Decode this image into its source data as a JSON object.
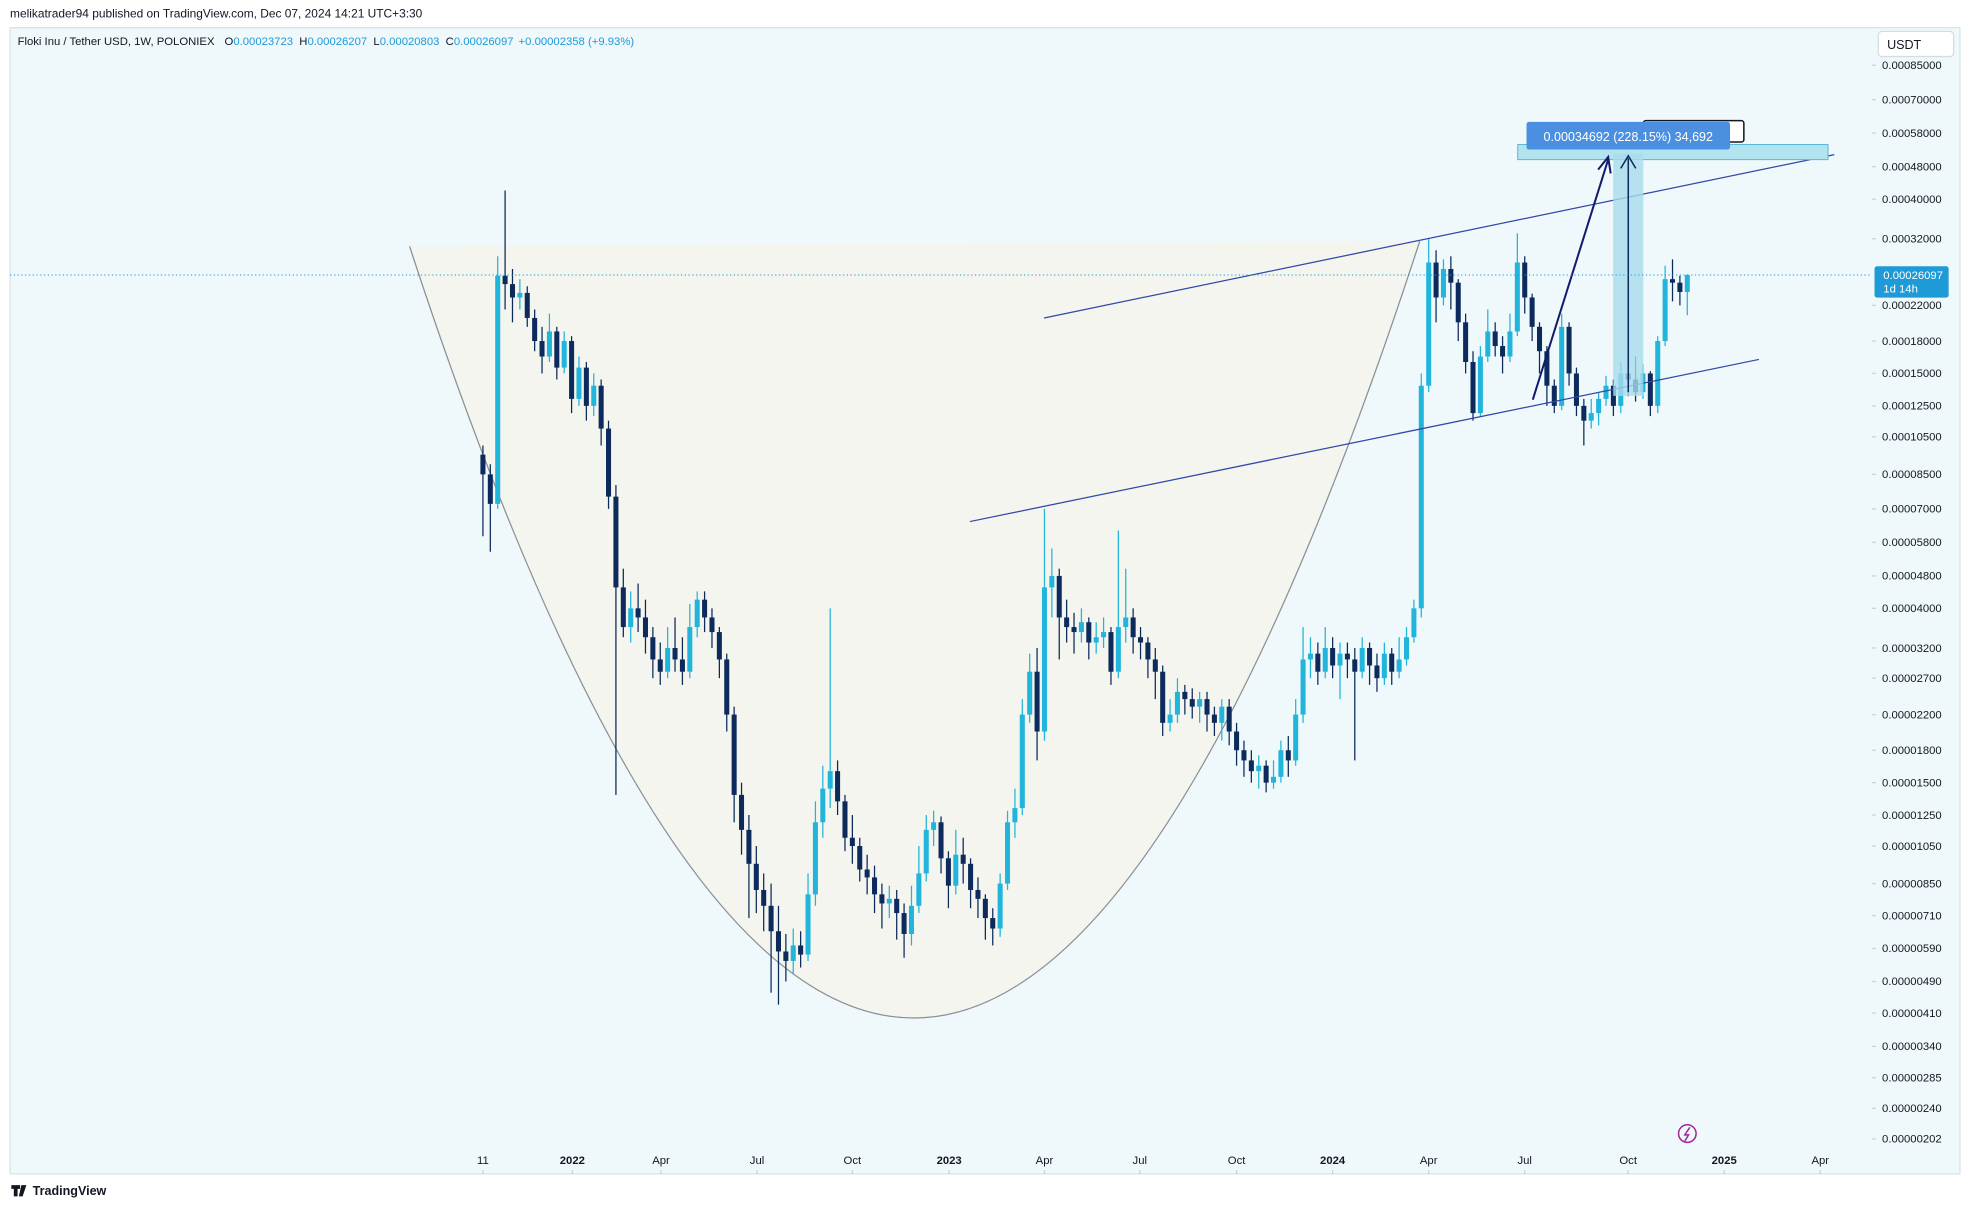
{
  "header": {
    "publisher": "melikatrader94 published on TradingView.com, Dec 07, 2024 14:21 UTC+3:30"
  },
  "currency": "USDT",
  "countdown": "1d 14h",
  "measure_label": "0.00034692 (228.15%) 34,692",
  "brand": "TradingView",
  "chart_data": {
    "type": "candlestick",
    "title": "Floki Inu / Tether USD, 1W, POLONIEX",
    "legend_keys": [
      "O",
      "H",
      "L",
      "C"
    ],
    "change": "+0.00002358 (+9.93%)",
    "log_scale": true,
    "up_color": "#22b5dc",
    "down_color": "#0c2a5c",
    "ylim": [
      1.66e-06,
      0.00105
    ],
    "yticks": [
      {
        "value": 0.00085,
        "label": "0.00085000"
      },
      {
        "value": 0.0007,
        "label": "0.00070000"
      },
      {
        "value": 0.00058,
        "label": "0.00058000"
      },
      {
        "value": 0.00048,
        "label": "0.00048000"
      },
      {
        "value": 0.0004,
        "label": "0.00040000"
      },
      {
        "value": 0.00032,
        "label": "0.00032000"
      },
      {
        "value": 0.00022,
        "label": "0.00022000"
      },
      {
        "value": 0.00018,
        "label": "0.00018000"
      },
      {
        "value": 0.00015,
        "label": "0.00015000"
      },
      {
        "value": 0.000125,
        "label": "0.00012500"
      },
      {
        "value": 0.000105,
        "label": "0.00010500"
      },
      {
        "value": 8.5e-05,
        "label": "0.00008500"
      },
      {
        "value": 7e-05,
        "label": "0.00007000"
      },
      {
        "value": 5.8e-05,
        "label": "0.00005800"
      },
      {
        "value": 4.8e-05,
        "label": "0.00004800"
      },
      {
        "value": 4e-05,
        "label": "0.00004000"
      },
      {
        "value": 3.2e-05,
        "label": "0.00003200"
      },
      {
        "value": 2.7e-05,
        "label": "0.00002700"
      },
      {
        "value": 2.2e-05,
        "label": "0.00002200"
      },
      {
        "value": 1.8e-05,
        "label": "0.00001800"
      },
      {
        "value": 1.5e-05,
        "label": "0.00001500"
      },
      {
        "value": 1.25e-05,
        "label": "0.00001250"
      },
      {
        "value": 1.05e-05,
        "label": "0.00001050"
      },
      {
        "value": 8.5e-06,
        "label": "0.00000850"
      },
      {
        "value": 7.1e-06,
        "label": "0.00000710"
      },
      {
        "value": 5.9e-06,
        "label": "0.00000590"
      },
      {
        "value": 4.9e-06,
        "label": "0.00000490"
      },
      {
        "value": 4.1e-06,
        "label": "0.00000410"
      },
      {
        "value": 3.4e-06,
        "label": "0.00000340"
      },
      {
        "value": 2.85e-06,
        "label": "0.00000285"
      },
      {
        "value": 2.4e-06,
        "label": "0.00000240"
      },
      {
        "value": 2.02e-06,
        "label": "0.00000202"
      }
    ],
    "xlim": [
      -64,
      188
    ],
    "xticks": [
      {
        "value": 0,
        "label": "11"
      },
      {
        "value": 12.1,
        "label": "2022"
      },
      {
        "value": 24.1,
        "label": "Apr"
      },
      {
        "value": 37.1,
        "label": "Jul"
      },
      {
        "value": 50,
        "label": "Oct"
      },
      {
        "value": 63.1,
        "label": "2023"
      },
      {
        "value": 76,
        "label": "Apr"
      },
      {
        "value": 88.9,
        "label": "Jul"
      },
      {
        "value": 102,
        "label": "Oct"
      },
      {
        "value": 115,
        "label": "2024"
      },
      {
        "value": 128,
        "label": "Apr"
      },
      {
        "value": 141,
        "label": "Jul"
      },
      {
        "value": 155,
        "label": "Oct"
      },
      {
        "value": 168,
        "label": "2025"
      },
      {
        "value": 181,
        "label": "Apr"
      }
    ],
    "open": [
      9.5e-05,
      8.5e-05,
      7.2e-05,
      0.00026,
      0.000248,
      0.00023,
      0.000236,
      0.000205,
      0.00018,
      0.000165,
      0.00019,
      0.000155,
      0.00018,
      0.00013,
      0.000155,
      0.000125,
      0.00014,
      0.00011,
      7.5e-05,
      4.5e-05,
      3.6e-05,
      4e-05,
      3.8e-05,
      3.4e-05,
      3e-05,
      2.8e-05,
      3.2e-05,
      3e-05,
      2.8e-05,
      3.6e-05,
      4.2e-05,
      3.8e-05,
      3.5e-05,
      3e-05,
      2.2e-05,
      1.4e-05,
      1.15e-05,
      9.5e-06,
      8.2e-06,
      7.5e-06,
      6.5e-06,
      5.8e-06,
      5.5e-06,
      6e-06,
      5.7e-06,
      8e-06,
      1.2e-05,
      1.45e-05,
      1.6e-05,
      1.35e-05,
      1.1e-05,
      1.05e-05,
      9.2e-06,
      8.8e-06,
      8e-06,
      7.6e-06,
      7.8e-06,
      7.2e-06,
      6.4e-06,
      7.5e-06,
      9e-06,
      1.15e-05,
      1.2e-05,
      9.8e-06,
      8.4e-06,
      1e-05,
      9.5e-06,
      8.2e-06,
      7.8e-06,
      7e-06,
      6.6e-06,
      8.5e-06,
      1.2e-05,
      1.3e-05,
      2.2e-05,
      2.8e-05,
      2e-05,
      4.5e-05,
      4.8e-05,
      3.8e-05,
      3.6e-05,
      3.5e-05,
      3.7e-05,
      3.3e-05,
      3.4e-05,
      3.5e-05,
      2.8e-05,
      3.6e-05,
      3.8e-05,
      3.4e-05,
      3.3e-05,
      3e-05,
      2.8e-05,
      2.1e-05,
      2.2e-05,
      2.5e-05,
      2.4e-05,
      2.3e-05,
      2.4e-05,
      2.2e-05,
      2.1e-05,
      2.3e-05,
      2e-05,
      1.8e-05,
      1.7e-05,
      1.6e-05,
      1.65e-05,
      1.5e-05,
      1.55e-05,
      1.8e-05,
      1.7e-05,
      2.2e-05,
      3e-05,
      3.1e-05,
      2.8e-05,
      3.2e-05,
      2.9e-05,
      3.1e-05,
      3e-05,
      2.8e-05,
      3.2e-05,
      2.9e-05,
      2.7e-05,
      3.1e-05,
      2.8e-05,
      3e-05,
      3.4e-05,
      4e-05,
      0.00014,
      0.00028,
      0.00023,
      0.00027,
      0.00025,
      0.0002,
      0.00016,
      0.00012,
      0.000165,
      0.00019,
      0.000175,
      0.000165,
      0.00019,
      0.00028,
      0.00023,
      0.000195,
      0.00017,
      0.00014,
      0.000125,
      0.000195,
      0.00015,
      0.000125,
      0.000115,
      0.00012,
      0.00013,
      0.00014,
      0.000125,
      0.00015,
      0.000145,
      0.000135,
      0.00015,
      0.000125,
      0.00018,
      0.000255,
      0.00025,
      0.00023723
    ],
    "high": [
      0.0001,
      9e-05,
      0.00029,
      0.00042,
      0.00027,
      0.000255,
      0.000245,
      0.000215,
      0.000195,
      0.00021,
      0.000195,
      0.00019,
      0.000185,
      0.000165,
      0.00016,
      0.00015,
      0.000145,
      0.000115,
      8e-05,
      5e-05,
      4.4e-05,
      4.6e-05,
      4.2e-05,
      3.6e-05,
      3.3e-05,
      3.6e-05,
      3.8e-05,
      3.4e-05,
      4.1e-05,
      4.4e-05,
      4.4e-05,
      4e-05,
      3.6e-05,
      3.1e-05,
      2.3e-05,
      1.5e-05,
      1.25e-05,
      1.05e-05,
      9e-06,
      8.5e-06,
      7.5e-06,
      6.4e-06,
      6.6e-06,
      6.5e-06,
      9e-06,
      1.35e-05,
      1.65e-05,
      4e-05,
      1.7e-05,
      1.4e-05,
      1.25e-05,
      1.1e-05,
      1e-05,
      9.4e-06,
      8.5e-06,
      8.4e-06,
      8.2e-06,
      7.6e-06,
      8.4e-06,
      1.05e-05,
      1.25e-05,
      1.28e-05,
      1.24e-05,
      1.02e-05,
      1.15e-05,
      1.1e-05,
      9.8e-06,
      8.8e-06,
      8e-06,
      7.4e-06,
      9e-06,
      1.28e-05,
      1.45e-05,
      2.4e-05,
      3.1e-05,
      3.2e-05,
      7e-05,
      5.6e-05,
      5e-05,
      4.2e-05,
      3.9e-05,
      4e-05,
      3.8e-05,
      3.7e-05,
      3.8e-05,
      3.6e-05,
      6.2e-05,
      5e-05,
      4e-05,
      3.6e-05,
      3.4e-05,
      3.2e-05,
      2.9e-05,
      2.4e-05,
      2.7e-05,
      2.6e-05,
      2.55e-05,
      2.5e-05,
      2.5e-05,
      2.3e-05,
      2.4e-05,
      2.4e-05,
      2.1e-05,
      1.9e-05,
      1.8e-05,
      1.75e-05,
      1.7e-05,
      1.7e-05,
      1.9e-05,
      1.95e-05,
      2.4e-05,
      3.6e-05,
      3.4e-05,
      3.3e-05,
      3.6e-05,
      3.4e-05,
      3.3e-05,
      3.3e-05,
      3.2e-05,
      3.4e-05,
      3.3e-05,
      3.1e-05,
      3.3e-05,
      3.2e-05,
      3.4e-05,
      3.6e-05,
      4.2e-05,
      0.00015,
      0.00032,
      0.0003,
      0.000285,
      0.00029,
      0.000255,
      0.00021,
      0.00017,
      0.000175,
      0.000215,
      0.0002,
      0.000185,
      0.00021,
      0.00033,
      0.00029,
      0.000235,
      0.0002,
      0.000175,
      0.000145,
      0.00021,
      0.0002,
      0.000155,
      0.00013,
      0.00013,
      0.000135,
      0.000148,
      0.000145,
      0.00016,
      0.000155,
      0.000165,
      0.000158,
      0.000152,
      0.000185,
      0.000275,
      0.000285,
      0.00026,
      0.00026207
    ],
    "low": [
      6e-05,
      5.5e-05,
      7e-05,
      0.000215,
      0.0002,
      0.000215,
      0.000195,
      0.00017,
      0.00015,
      0.00016,
      0.000145,
      0.00015,
      0.00012,
      0.000125,
      0.000115,
      0.000118,
      0.0001,
      7e-05,
      1.4e-05,
      3.4e-05,
      3.3e-05,
      3.5e-05,
      3.1e-05,
      2.7e-05,
      2.6e-05,
      2.7e-05,
      2.8e-05,
      2.6e-05,
      2.7e-05,
      3.4e-05,
      3.5e-05,
      3.2e-05,
      2.7e-05,
      2e-05,
      1.2e-05,
      1e-05,
      7e-06,
      7.2e-06,
      6.5e-06,
      4.6e-06,
      4.3e-06,
      4.9e-06,
      5.1e-06,
      5.3e-06,
      5.5e-06,
      7.5e-06,
      1.1e-05,
      1.3e-05,
      1.25e-05,
      1.02e-05,
      9.5e-06,
      8.6e-06,
      8e-06,
      7.2e-06,
      6.6e-06,
      7e-06,
      6.2e-06,
      5.6e-06,
      6e-06,
      7.2e-06,
      8.6e-06,
      1.05e-05,
      9e-06,
      7.4e-06,
      8e-06,
      8.5e-06,
      7.4e-06,
      7e-06,
      6.2e-06,
      6e-06,
      6.3e-06,
      8.2e-06,
      1.1e-05,
      1.25e-05,
      2.1e-05,
      1.7e-05,
      1.9e-05,
      3.8e-05,
      3e-05,
      3.3e-05,
      3.1e-05,
      3.3e-05,
      3e-05,
      3.1e-05,
      3.2e-05,
      2.6e-05,
      2.7e-05,
      3.3e-05,
      3.1e-05,
      3e-05,
      2.7e-05,
      2.4e-05,
      1.95e-05,
      2e-05,
      2.1e-05,
      2.2e-05,
      2.15e-05,
      2.1e-05,
      2e-05,
      1.95e-05,
      1.9e-05,
      1.85e-05,
      1.65e-05,
      1.55e-05,
      1.5e-05,
      1.45e-05,
      1.42e-05,
      1.45e-05,
      1.5e-05,
      1.55e-05,
      1.65e-05,
      2.1e-05,
      2.7e-05,
      2.6e-05,
      2.7e-05,
      2.7e-05,
      2.4e-05,
      2.7e-05,
      1.7e-05,
      2.7e-05,
      2.6e-05,
      2.5e-05,
      2.6e-05,
      2.6e-05,
      2.7e-05,
      2.9e-05,
      3.3e-05,
      3.8e-05,
      0.000135,
      0.0002,
      0.00022,
      0.000215,
      0.00018,
      0.00015,
      0.000115,
      0.000118,
      0.00016,
      0.000165,
      0.00015,
      0.00016,
      0.000185,
      0.00021,
      0.00018,
      0.00015,
      0.000125,
      0.00012,
      0.000122,
      0.00014,
      0.000118,
      0.0001,
      0.00011,
      0.000112,
      0.000125,
      0.000118,
      0.00012,
      0.000132,
      0.000128,
      0.00013,
      0.000118,
      0.00012,
      0.000175,
      0.000225,
      0.00022,
      0.00020803
    ],
    "close": [
      8.5e-05,
      7.2e-05,
      0.00026,
      0.000248,
      0.00023,
      0.000236,
      0.000205,
      0.00018,
      0.000165,
      0.00019,
      0.000155,
      0.00018,
      0.00013,
      0.000155,
      0.000125,
      0.00014,
      0.00011,
      7.5e-05,
      4.5e-05,
      3.6e-05,
      4e-05,
      3.8e-05,
      3.4e-05,
      3e-05,
      2.8e-05,
      3.2e-05,
      3e-05,
      2.8e-05,
      3.6e-05,
      4.2e-05,
      3.8e-05,
      3.5e-05,
      3e-05,
      2.2e-05,
      1.4e-05,
      1.15e-05,
      9.5e-06,
      8.2e-06,
      7.5e-06,
      6.5e-06,
      5.8e-06,
      5.5e-06,
      6e-06,
      5.7e-06,
      8e-06,
      1.2e-05,
      1.45e-05,
      1.6e-05,
      1.35e-05,
      1.1e-05,
      1.05e-05,
      9.2e-06,
      8.8e-06,
      8e-06,
      7.6e-06,
      7.8e-06,
      7.2e-06,
      6.4e-06,
      7.5e-06,
      9e-06,
      1.15e-05,
      1.2e-05,
      9.8e-06,
      8.4e-06,
      1e-05,
      9.5e-06,
      8.2e-06,
      7.8e-06,
      7e-06,
      6.6e-06,
      8.5e-06,
      1.2e-05,
      1.3e-05,
      2.2e-05,
      2.8e-05,
      2e-05,
      4.5e-05,
      4.8e-05,
      3.8e-05,
      3.6e-05,
      3.5e-05,
      3.7e-05,
      3.3e-05,
      3.4e-05,
      3.5e-05,
      2.8e-05,
      3.6e-05,
      3.8e-05,
      3.4e-05,
      3.3e-05,
      3e-05,
      2.8e-05,
      2.1e-05,
      2.2e-05,
      2.5e-05,
      2.4e-05,
      2.3e-05,
      2.4e-05,
      2.2e-05,
      2.1e-05,
      2.3e-05,
      2e-05,
      1.8e-05,
      1.7e-05,
      1.6e-05,
      1.65e-05,
      1.5e-05,
      1.55e-05,
      1.8e-05,
      1.7e-05,
      2.2e-05,
      3e-05,
      3.1e-05,
      2.8e-05,
      3.2e-05,
      2.9e-05,
      3.1e-05,
      3e-05,
      2.8e-05,
      3.2e-05,
      2.9e-05,
      2.7e-05,
      3.1e-05,
      2.8e-05,
      3e-05,
      3.4e-05,
      4e-05,
      0.00014,
      0.00028,
      0.00023,
      0.00027,
      0.00025,
      0.0002,
      0.00016,
      0.00012,
      0.000165,
      0.00019,
      0.000175,
      0.000165,
      0.00019,
      0.00028,
      0.00023,
      0.000195,
      0.00017,
      0.00014,
      0.000125,
      0.000195,
      0.00015,
      0.000125,
      0.000115,
      0.00012,
      0.00013,
      0.00014,
      0.000125,
      0.00015,
      0.000145,
      0.000135,
      0.00015,
      0.000125,
      0.00018,
      0.000255,
      0.00025,
      0.00023723,
      0.00026097
    ]
  }
}
